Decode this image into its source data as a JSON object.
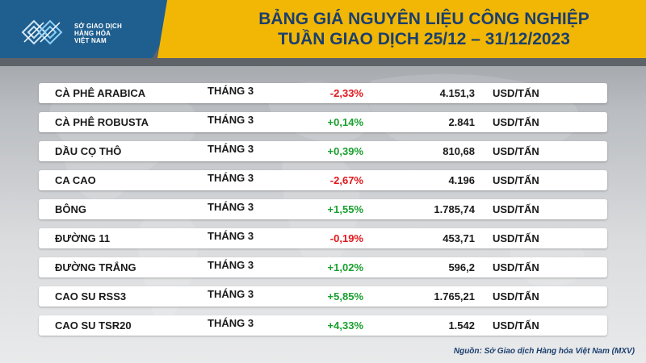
{
  "header": {
    "logo": {
      "lines": [
        "SỞ GIAO DỊCH",
        "HÀNG HÓA",
        "VIỆT NAM"
      ],
      "icon": "mxv-logo-icon"
    },
    "title_line1": "BẢNG GIÁ NGUYÊN LIỆU CÔNG NGHIỆP",
    "title_line2": "TUẦN GIAO DỊCH 25/12 – 31/12/2023"
  },
  "colors": {
    "title": "#1b3f6e",
    "band": "#f2b705",
    "up": "#19a02e",
    "down": "#e3161b"
  },
  "rows": [
    {
      "name": "CÀ PHÊ ARABICA",
      "month": "THÁNG 3",
      "change": "-2,33%",
      "direction": "down",
      "price": "4.151,3",
      "unit": "USD/TẤN"
    },
    {
      "name": "CÀ PHÊ ROBUSTA",
      "month": "THÁNG 3",
      "change": "+0,14%",
      "direction": "up",
      "price": "2.841",
      "unit": "USD/TẤN"
    },
    {
      "name": "DẦU CỌ THÔ",
      "month": "THÁNG 3",
      "change": "+0,39%",
      "direction": "up",
      "price": "810,68",
      "unit": "USD/TẤN"
    },
    {
      "name": "CA CAO",
      "month": "THÁNG 3",
      "change": "-2,67%",
      "direction": "down",
      "price": "4.196",
      "unit": "USD/TẤN"
    },
    {
      "name": "BÔNG",
      "month": "THÁNG 3",
      "change": "+1,55%",
      "direction": "up",
      "price": "1.785,74",
      "unit": "USD/TẤN"
    },
    {
      "name": "ĐƯỜNG 11",
      "month": "THÁNG 3",
      "change": "-0,19%",
      "direction": "down",
      "price": "453,71",
      "unit": "USD/TẤN"
    },
    {
      "name": "ĐƯỜNG TRẮNG",
      "month": "THÁNG 3",
      "change": "+1,02%",
      "direction": "up",
      "price": "596,2",
      "unit": "USD/TẤN"
    },
    {
      "name": "CAO SU RSS3",
      "month": "THÁNG 3",
      "change": "+5,85%",
      "direction": "up",
      "price": "1.765,21",
      "unit": "USD/TẤN"
    },
    {
      "name": "CAO SU TSR20",
      "month": "THÁNG 3",
      "change": "+4,33%",
      "direction": "up",
      "price": "1.542",
      "unit": "USD/TẤN"
    }
  ],
  "source": "Nguồn: Sở Giao dịch Hàng hóa Việt Nam (MXV)"
}
